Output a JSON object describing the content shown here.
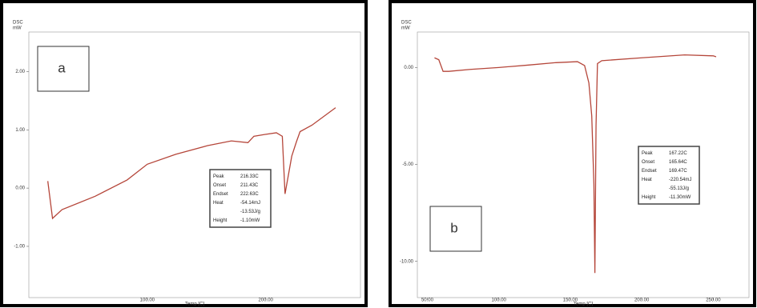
{
  "chart_data": [
    {
      "type": "line",
      "label": "a",
      "ylabel": "DSC",
      "yunit": "mW",
      "xlabel": "Temp [C]",
      "xlim": [
        0,
        280
      ],
      "ylim": [
        -1.88,
        2.68
      ],
      "xticks": [
        {
          "value": 100,
          "label": "100.00"
        },
        {
          "value": 200,
          "label": "200.00"
        }
      ],
      "yticks": [
        {
          "value": 2,
          "label": "2.00"
        },
        {
          "value": 1,
          "label": "1.00"
        },
        {
          "value": 0,
          "label": "0.00"
        },
        {
          "value": -1,
          "label": "-1.00"
        }
      ],
      "x": [
        16,
        20,
        28,
        56,
        83,
        100,
        124,
        151,
        171,
        185,
        190,
        199,
        209,
        214,
        216.3,
        222,
        226,
        229,
        239,
        259
      ],
      "series": [
        {
          "color": "#b5463a",
          "values": [
            0.12,
            -0.52,
            -0.37,
            -0.14,
            0.14,
            0.41,
            0.58,
            0.73,
            0.81,
            0.78,
            0.89,
            0.92,
            0.95,
            0.89,
            -0.1,
            0.55,
            0.8,
            0.97,
            1.08,
            1.38
          ]
        }
      ],
      "info_box": [
        {
          "label": "Peak",
          "values": [
            "216.33C"
          ]
        },
        {
          "label": "Onset",
          "values": [
            "211.43C"
          ]
        },
        {
          "label": "Endset",
          "values": [
            "222.63C"
          ]
        },
        {
          "label": "Heat",
          "values": [
            "-54.14mJ",
            "-13.53J/g"
          ]
        },
        {
          "label": "Height",
          "values": [
            "-1.10mW"
          ]
        }
      ]
    },
    {
      "type": "line",
      "label": "b",
      "ylabel": "DSC",
      "yunit": "mW",
      "xlabel": "Temp [C]",
      "xlim": [
        43,
        275
      ],
      "ylim": [
        -11.87,
        1.83
      ],
      "xticks": [
        {
          "value": 50,
          "label": "50.00"
        },
        {
          "value": 100,
          "label": "100.00"
        },
        {
          "value": 150,
          "label": "150.00"
        },
        {
          "value": 200,
          "label": "200.00"
        },
        {
          "value": 250,
          "label": "250.00"
        }
      ],
      "yticks": [
        {
          "value": 0,
          "label": "0.00"
        },
        {
          "value": -5,
          "label": "-5.00"
        },
        {
          "value": -10,
          "label": "-10.00"
        }
      ],
      "x": [
        55,
        58,
        61,
        65,
        80,
        100,
        120,
        140,
        155,
        160,
        163,
        165,
        166.5,
        167.2,
        168,
        169,
        172,
        200,
        230,
        250,
        252
      ],
      "series": [
        {
          "color": "#b5463a",
          "values": [
            0.5,
            0.4,
            -0.2,
            -0.2,
            -0.1,
            0,
            0.12,
            0.25,
            0.3,
            0.1,
            -0.8,
            -2.5,
            -6,
            -10.6,
            -3,
            0.2,
            0.35,
            0.5,
            0.65,
            0.6,
            0.55
          ]
        }
      ],
      "info_box": [
        {
          "label": "Peak",
          "values": [
            "167.22C"
          ]
        },
        {
          "label": "Onset",
          "values": [
            "165.64C"
          ]
        },
        {
          "label": "Endset",
          "values": [
            "169.47C"
          ]
        },
        {
          "label": "Heat",
          "values": [
            "-220.54mJ",
            "-55.13J/g"
          ]
        },
        {
          "label": "Height",
          "values": [
            "-11.30mW"
          ]
        }
      ]
    }
  ]
}
